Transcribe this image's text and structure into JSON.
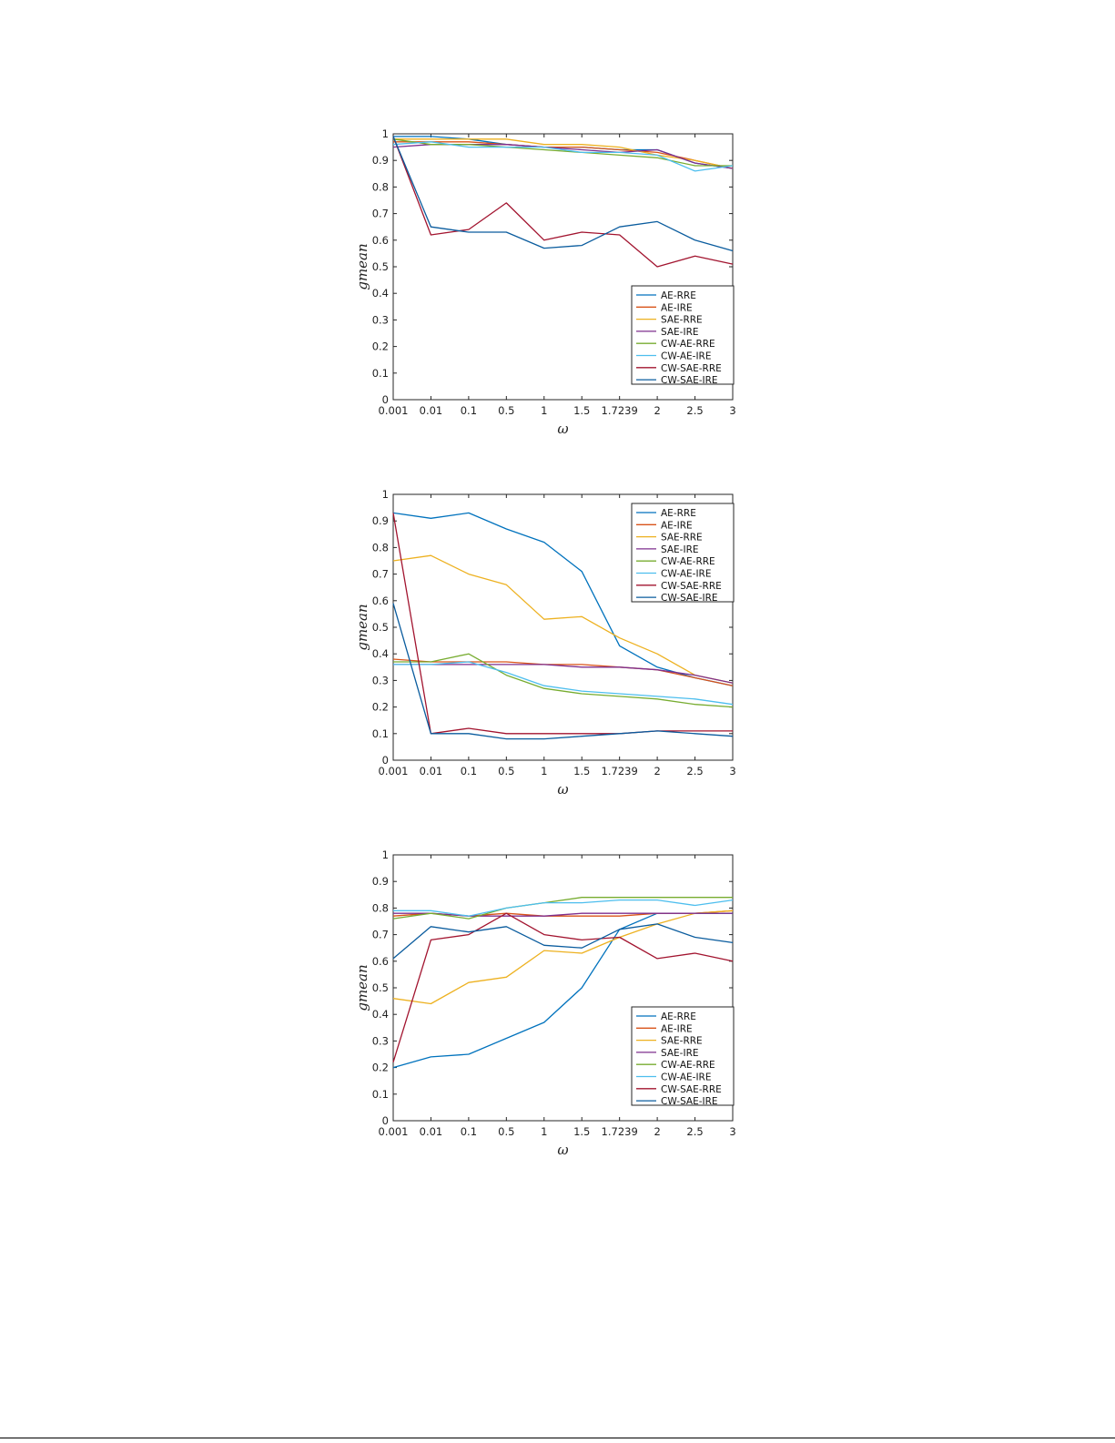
{
  "colors": [
    "#0072bd",
    "#d95319",
    "#edb120",
    "#7e2f8e",
    "#77ac30",
    "#4dbeee",
    "#a2142f",
    "#0a5c9e"
  ],
  "chart_data": [
    {
      "type": "line",
      "xlabel": "ω",
      "ylabel": "gmean",
      "x": [
        "0.001",
        "0.01",
        "0.1",
        "0.5",
        "1",
        "1.5",
        "1.7239",
        "2",
        "2.5",
        "3"
      ],
      "ylim": [
        0,
        1
      ],
      "yticks": [
        "0",
        "0.1",
        "0.2",
        "0.3",
        "0.4",
        "0.5",
        "0.6",
        "0.7",
        "0.8",
        "0.9",
        "1"
      ],
      "legend_position": "bottom-right",
      "grid": false,
      "series": [
        {
          "name": "AE-RRE",
          "values": [
            0.99,
            0.99,
            0.98,
            0.96,
            0.95,
            0.95,
            0.94,
            0.94,
            0.89,
            0.87
          ]
        },
        {
          "name": "AE-IRE",
          "values": [
            0.97,
            0.97,
            0.97,
            0.96,
            0.95,
            0.95,
            0.94,
            0.93,
            0.9,
            0.87
          ]
        },
        {
          "name": "SAE-RRE",
          "values": [
            0.98,
            0.98,
            0.98,
            0.98,
            0.96,
            0.96,
            0.95,
            0.92,
            0.9,
            0.87
          ]
        },
        {
          "name": "SAE-IRE",
          "values": [
            0.95,
            0.96,
            0.96,
            0.96,
            0.95,
            0.94,
            0.93,
            0.94,
            0.89,
            0.87
          ]
        },
        {
          "name": "CW-AE-RRE",
          "values": [
            0.98,
            0.96,
            0.96,
            0.95,
            0.94,
            0.93,
            0.92,
            0.91,
            0.88,
            0.88
          ]
        },
        {
          "name": "CW-AE-IRE",
          "values": [
            0.96,
            0.97,
            0.95,
            0.95,
            0.95,
            0.93,
            0.93,
            0.92,
            0.86,
            0.88
          ]
        },
        {
          "name": "CW-SAE-RRE",
          "values": [
            0.99,
            0.62,
            0.64,
            0.74,
            0.6,
            0.63,
            0.62,
            0.5,
            0.54,
            0.51
          ]
        },
        {
          "name": "CW-SAE-IRE",
          "values": [
            0.99,
            0.65,
            0.63,
            0.63,
            0.57,
            0.58,
            0.65,
            0.67,
            0.6,
            0.56
          ]
        }
      ]
    },
    {
      "type": "line",
      "xlabel": "ω",
      "ylabel": "gmean",
      "x": [
        "0.001",
        "0.01",
        "0.1",
        "0.5",
        "1",
        "1.5",
        "1.7239",
        "2",
        "2.5",
        "3"
      ],
      "ylim": [
        0,
        1
      ],
      "yticks": [
        "0",
        "0.1",
        "0.2",
        "0.3",
        "0.4",
        "0.5",
        "0.6",
        "0.7",
        "0.8",
        "0.9",
        "1"
      ],
      "legend_position": "top-right",
      "grid": false,
      "series": [
        {
          "name": "AE-RRE",
          "values": [
            0.93,
            0.91,
            0.93,
            0.87,
            0.82,
            0.71,
            0.43,
            0.35,
            0.31,
            0.28
          ]
        },
        {
          "name": "AE-IRE",
          "values": [
            0.38,
            0.37,
            0.37,
            0.37,
            0.36,
            0.36,
            0.35,
            0.34,
            0.31,
            0.28
          ]
        },
        {
          "name": "SAE-RRE",
          "values": [
            0.75,
            0.77,
            0.7,
            0.66,
            0.53,
            0.54,
            0.46,
            0.4,
            0.32,
            0.29
          ]
        },
        {
          "name": "SAE-IRE",
          "values": [
            0.36,
            0.36,
            0.36,
            0.36,
            0.36,
            0.35,
            0.35,
            0.34,
            0.32,
            0.29
          ]
        },
        {
          "name": "CW-AE-RRE",
          "values": [
            0.37,
            0.37,
            0.4,
            0.32,
            0.27,
            0.25,
            0.24,
            0.23,
            0.21,
            0.2
          ]
        },
        {
          "name": "CW-AE-IRE",
          "values": [
            0.36,
            0.36,
            0.37,
            0.33,
            0.28,
            0.26,
            0.25,
            0.24,
            0.23,
            0.21
          ]
        },
        {
          "name": "CW-SAE-RRE",
          "values": [
            0.93,
            0.1,
            0.12,
            0.1,
            0.1,
            0.1,
            0.1,
            0.11,
            0.11,
            0.11
          ]
        },
        {
          "name": "CW-SAE-IRE",
          "values": [
            0.59,
            0.1,
            0.1,
            0.08,
            0.08,
            0.09,
            0.1,
            0.11,
            0.1,
            0.09
          ]
        }
      ]
    },
    {
      "type": "line",
      "xlabel": "ω",
      "ylabel": "gmean",
      "x": [
        "0.001",
        "0.01",
        "0.1",
        "0.5",
        "1",
        "1.5",
        "1.7239",
        "2",
        "2.5",
        "3"
      ],
      "ylim": [
        0,
        1
      ],
      "yticks": [
        "0",
        "0.1",
        "0.2",
        "0.3",
        "0.4",
        "0.5",
        "0.6",
        "0.7",
        "0.8",
        "0.9",
        "1"
      ],
      "legend_position": "bottom-right",
      "grid": false,
      "series": [
        {
          "name": "AE-RRE",
          "values": [
            0.2,
            0.24,
            0.25,
            0.31,
            0.37,
            0.5,
            0.72,
            0.78,
            0.78,
            0.78
          ]
        },
        {
          "name": "AE-IRE",
          "values": [
            0.77,
            0.78,
            0.77,
            0.78,
            0.77,
            0.77,
            0.77,
            0.78,
            0.78,
            0.79
          ]
        },
        {
          "name": "SAE-RRE",
          "values": [
            0.46,
            0.44,
            0.52,
            0.54,
            0.64,
            0.63,
            0.69,
            0.74,
            0.78,
            0.79
          ]
        },
        {
          "name": "SAE-IRE",
          "values": [
            0.78,
            0.78,
            0.77,
            0.77,
            0.77,
            0.78,
            0.78,
            0.78,
            0.78,
            0.78
          ]
        },
        {
          "name": "CW-AE-RRE",
          "values": [
            0.76,
            0.78,
            0.76,
            0.8,
            0.82,
            0.84,
            0.84,
            0.84,
            0.84,
            0.84
          ]
        },
        {
          "name": "CW-AE-IRE",
          "values": [
            0.79,
            0.79,
            0.77,
            0.8,
            0.82,
            0.82,
            0.83,
            0.83,
            0.81,
            0.83
          ]
        },
        {
          "name": "CW-SAE-RRE",
          "values": [
            0.22,
            0.68,
            0.7,
            0.78,
            0.7,
            0.68,
            0.69,
            0.61,
            0.63,
            0.6
          ]
        },
        {
          "name": "CW-SAE-IRE",
          "values": [
            0.61,
            0.73,
            0.71,
            0.73,
            0.66,
            0.65,
            0.72,
            0.74,
            0.69,
            0.67
          ]
        }
      ]
    }
  ]
}
